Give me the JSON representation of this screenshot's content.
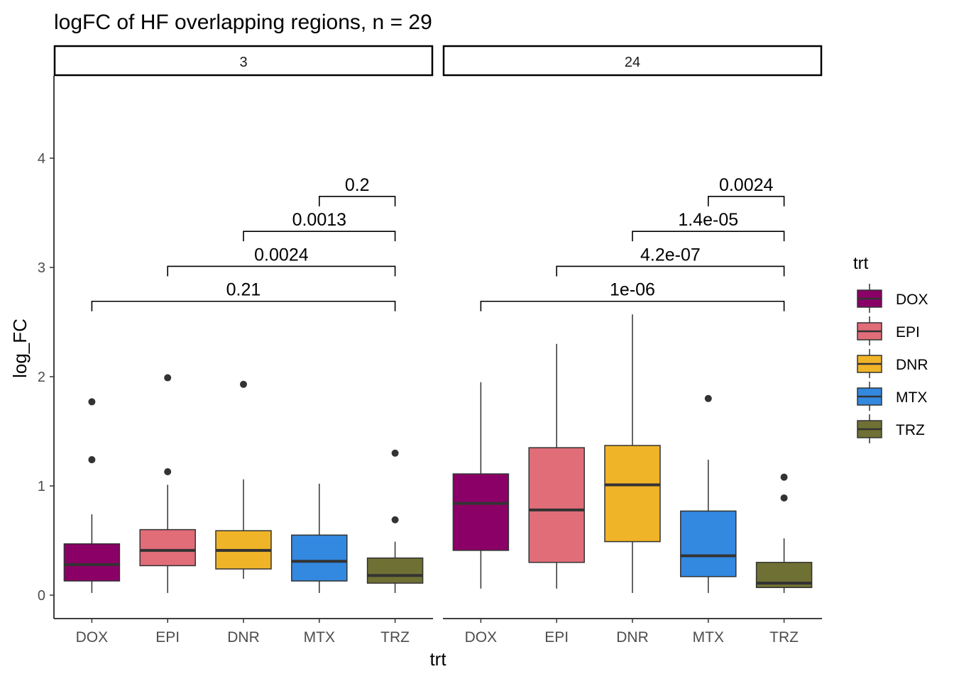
{
  "chart_data": {
    "type": "box",
    "title": "logFC of HF overlapping regions, n = 29",
    "xlabel": "trt",
    "ylabel": "log_FC",
    "ylim": [
      -0.2,
      4.75
    ],
    "yticks": [
      0,
      1,
      2,
      3,
      4
    ],
    "categories": [
      "DOX",
      "EPI",
      "DNR",
      "MTX",
      "TRZ"
    ],
    "colors": {
      "DOX": "#8B0066",
      "EPI": "#E06D78",
      "DNR": "#F0B428",
      "MTX": "#3388E0",
      "TRZ": "#6F7033"
    },
    "legend": {
      "title": "trt",
      "position": "right",
      "items": [
        "DOX",
        "EPI",
        "DNR",
        "MTX",
        "TRZ"
      ]
    },
    "panels": [
      {
        "label": "3",
        "boxes": [
          {
            "trt": "DOX",
            "min": 0.02,
            "q1": 0.13,
            "median": 0.28,
            "q3": 0.47,
            "max": 0.74,
            "outliers": [
              1.24,
              1.77
            ]
          },
          {
            "trt": "EPI",
            "min": 0.02,
            "q1": 0.27,
            "median": 0.41,
            "q3": 0.6,
            "max": 1.01,
            "outliers": [
              1.13,
              1.99
            ]
          },
          {
            "trt": "DNR",
            "min": 0.15,
            "q1": 0.24,
            "median": 0.41,
            "q3": 0.59,
            "max": 1.06,
            "outliers": [
              1.93
            ]
          },
          {
            "trt": "MTX",
            "min": 0.02,
            "q1": 0.13,
            "median": 0.31,
            "q3": 0.55,
            "max": 1.02,
            "outliers": []
          },
          {
            "trt": "TRZ",
            "min": 0.02,
            "q1": 0.11,
            "median": 0.18,
            "q3": 0.34,
            "max": 0.49,
            "outliers": [
              0.69,
              1.3
            ]
          }
        ],
        "comparisons": [
          {
            "from": "MTX",
            "to": "TRZ",
            "y": 3.65,
            "label": "0.2"
          },
          {
            "from": "DNR",
            "to": "TRZ",
            "y": 3.33,
            "label": "0.0013"
          },
          {
            "from": "EPI",
            "to": "TRZ",
            "y": 3.01,
            "label": "0.0024"
          },
          {
            "from": "DOX",
            "to": "TRZ",
            "y": 2.69,
            "label": "0.21"
          }
        ]
      },
      {
        "label": "24",
        "boxes": [
          {
            "trt": "DOX",
            "min": 0.06,
            "q1": 0.41,
            "median": 0.84,
            "q3": 1.11,
            "max": 1.95,
            "outliers": []
          },
          {
            "trt": "EPI",
            "min": 0.06,
            "q1": 0.3,
            "median": 0.78,
            "q3": 1.35,
            "max": 2.3,
            "outliers": []
          },
          {
            "trt": "DNR",
            "min": 0.02,
            "q1": 0.49,
            "median": 1.01,
            "q3": 1.37,
            "max": 2.57,
            "outliers": []
          },
          {
            "trt": "MTX",
            "min": 0.02,
            "q1": 0.17,
            "median": 0.36,
            "q3": 0.77,
            "max": 1.24,
            "outliers": [
              1.8
            ]
          },
          {
            "trt": "TRZ",
            "min": 0.02,
            "q1": 0.07,
            "median": 0.11,
            "q3": 0.3,
            "max": 0.52,
            "outliers": [
              0.89,
              1.08
            ]
          }
        ],
        "comparisons": [
          {
            "from": "MTX",
            "to": "TRZ",
            "y": 3.65,
            "label": "0.0024"
          },
          {
            "from": "DNR",
            "to": "TRZ",
            "y": 3.33,
            "label": "1.4e-05"
          },
          {
            "from": "EPI",
            "to": "TRZ",
            "y": 3.01,
            "label": "4.2e-07"
          },
          {
            "from": "DOX",
            "to": "TRZ",
            "y": 2.69,
            "label": "1e-06"
          }
        ]
      }
    ],
    "grid": false
  }
}
